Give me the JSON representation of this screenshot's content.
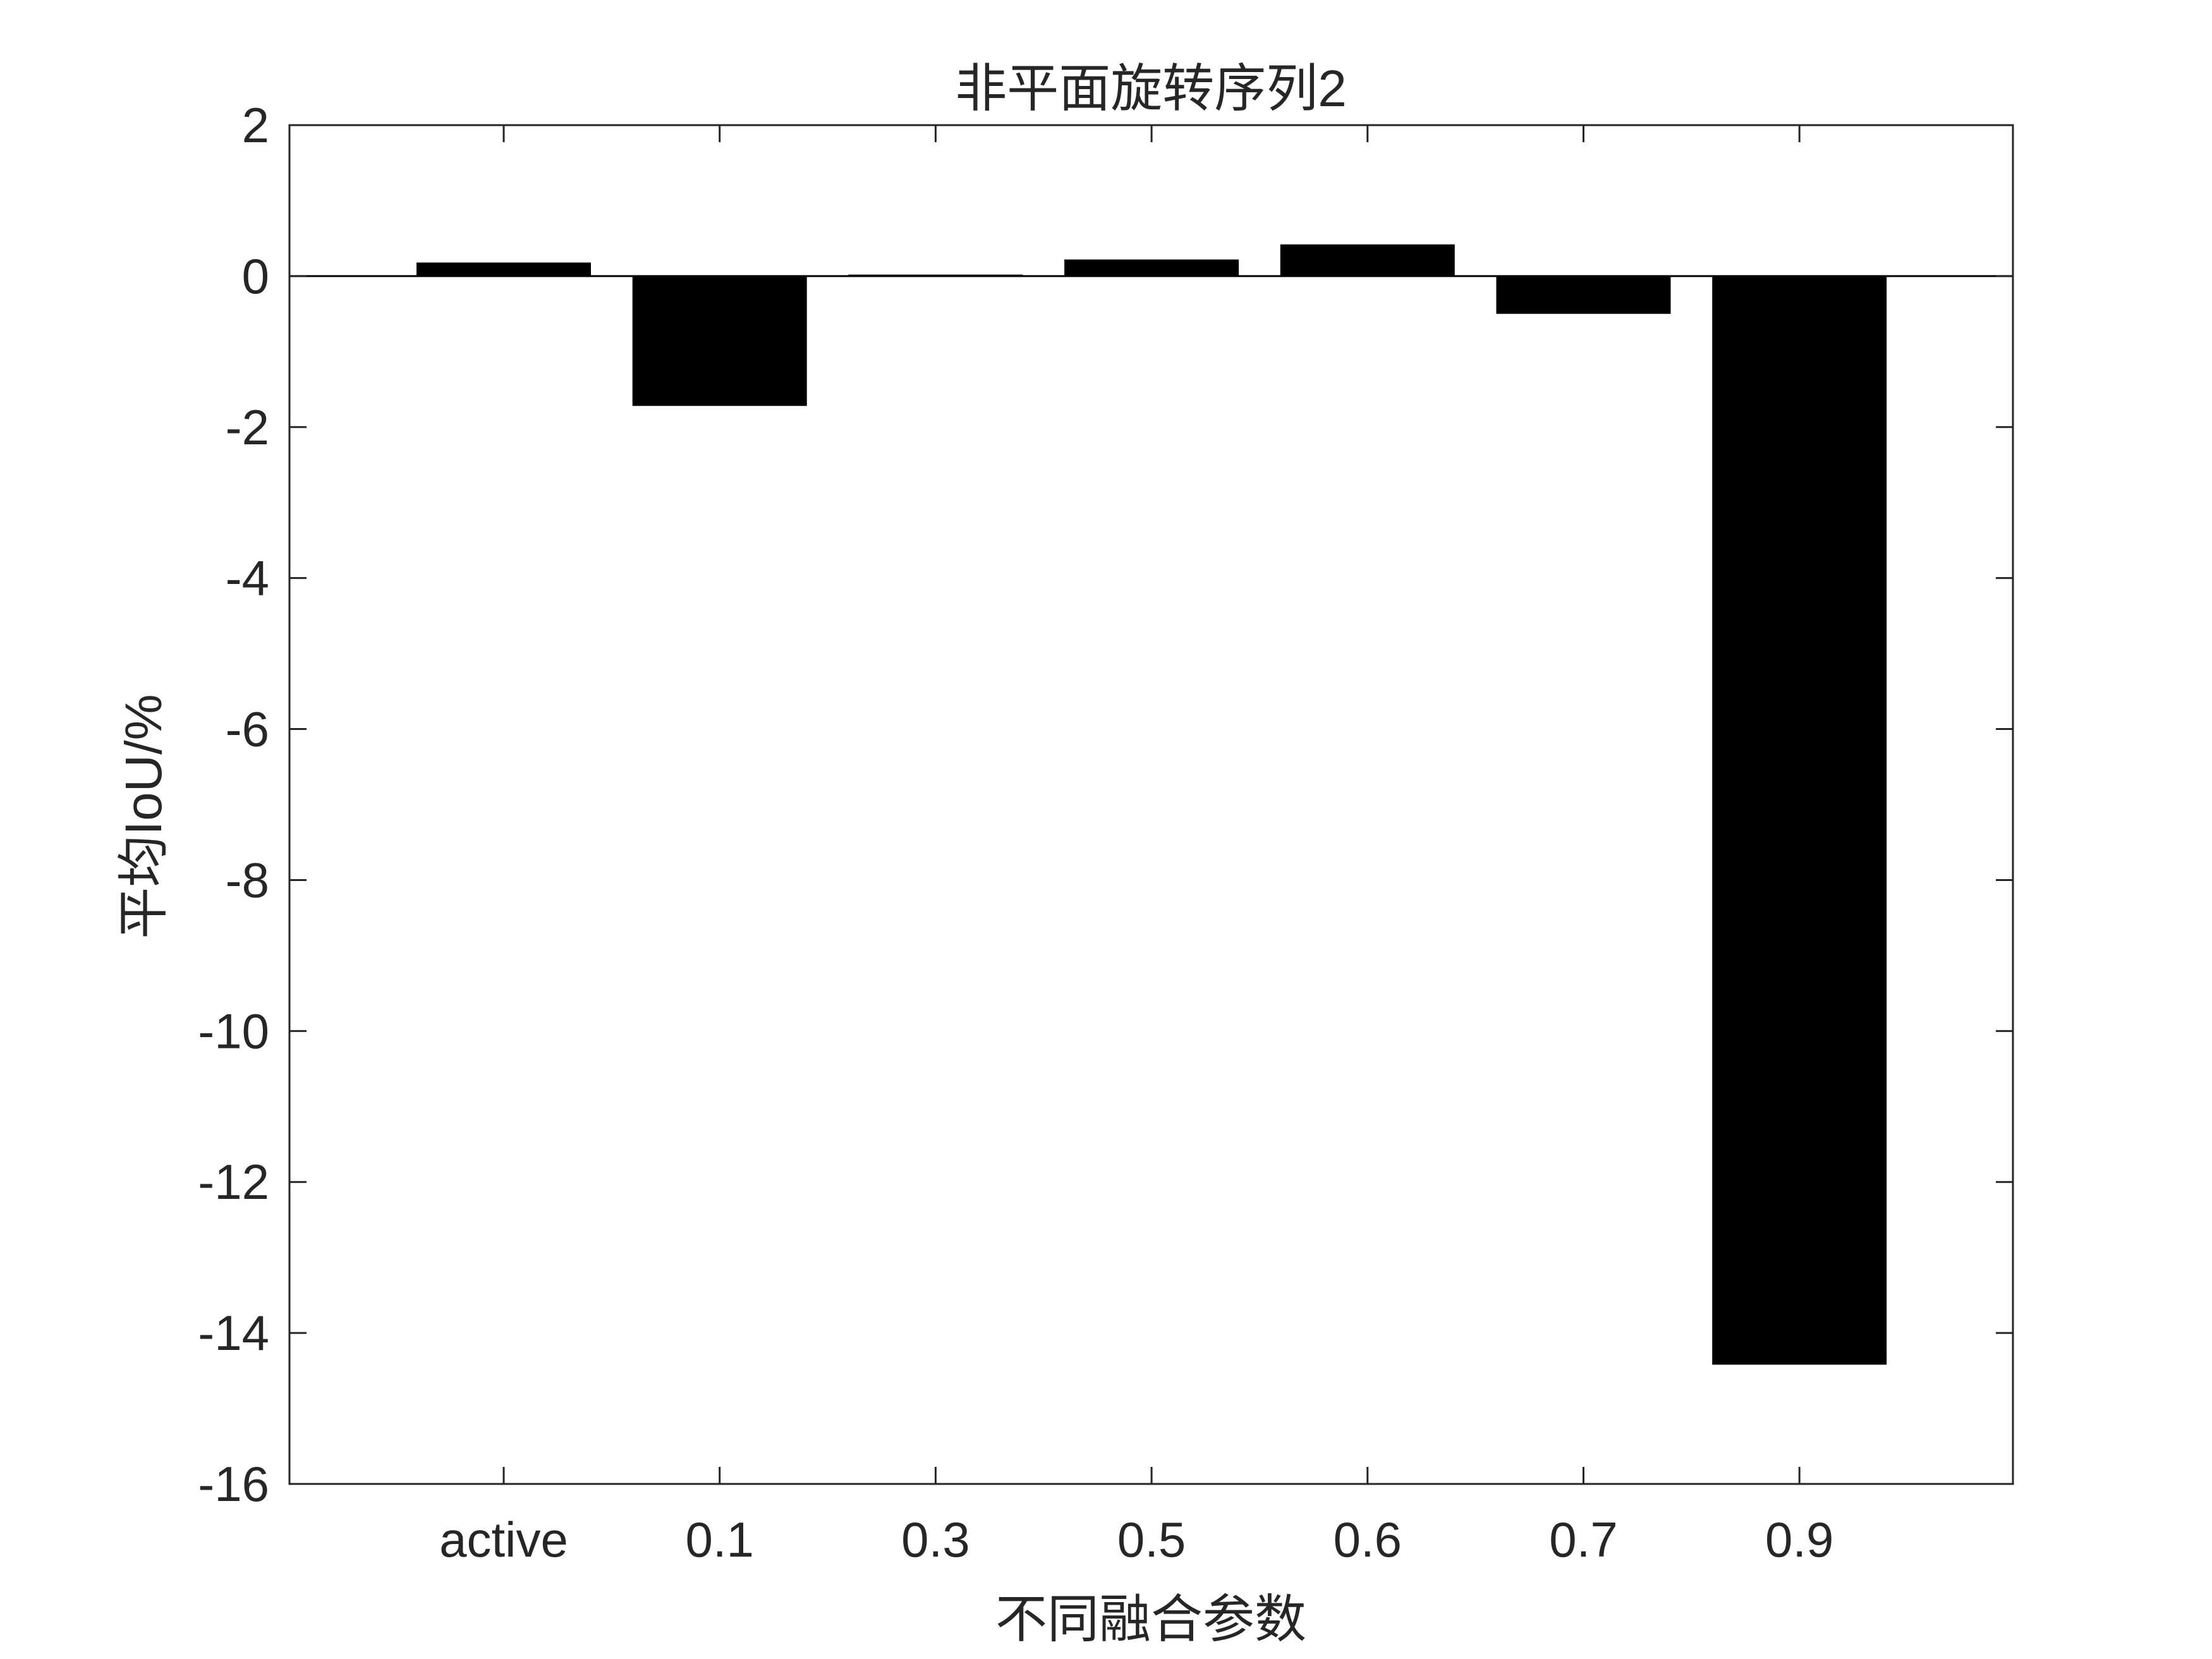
{
  "chart_data": {
    "type": "bar",
    "title": "非平面旋转序列2",
    "xlabel": "不同融合参数",
    "ylabel": "平均IoU/%",
    "categories": [
      "active",
      "0.1",
      "0.3",
      "0.5",
      "0.6",
      "0.7",
      "0.9"
    ],
    "values": [
      0.18,
      -1.72,
      0.02,
      0.22,
      0.42,
      -0.5,
      -14.42
    ],
    "ylim": [
      -16,
      2
    ],
    "yticks": [
      2,
      0,
      -2,
      -4,
      -6,
      -8,
      -10,
      -12,
      -14,
      -16
    ],
    "grid": false,
    "legend": "none",
    "bar_color": "#000000"
  }
}
